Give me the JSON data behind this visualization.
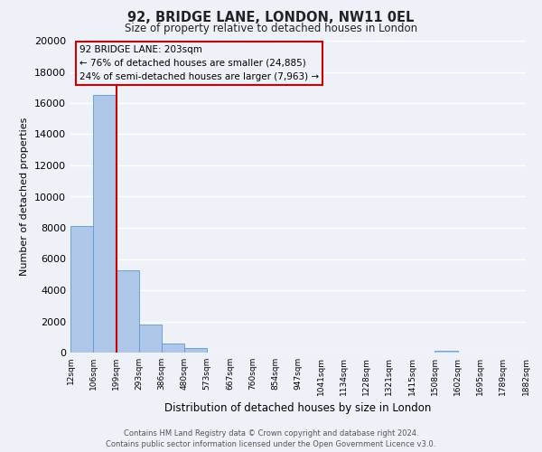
{
  "title": "92, BRIDGE LANE, LONDON, NW11 0EL",
  "subtitle": "Size of property relative to detached houses in London",
  "xlabel": "Distribution of detached houses by size in London",
  "ylabel": "Number of detached properties",
  "bin_labels": [
    "12sqm",
    "106sqm",
    "199sqm",
    "293sqm",
    "386sqm",
    "480sqm",
    "573sqm",
    "667sqm",
    "760sqm",
    "854sqm",
    "947sqm",
    "1041sqm",
    "1134sqm",
    "1228sqm",
    "1321sqm",
    "1415sqm",
    "1508sqm",
    "1602sqm",
    "1695sqm",
    "1789sqm",
    "1882sqm"
  ],
  "bin_edges": [
    12,
    106,
    199,
    293,
    386,
    480,
    573,
    667,
    760,
    854,
    947,
    1041,
    1134,
    1228,
    1321,
    1415,
    1508,
    1602,
    1695,
    1789,
    1882
  ],
  "bar_heights": [
    8100,
    16500,
    5300,
    1800,
    600,
    280,
    0,
    0,
    0,
    0,
    0,
    0,
    0,
    0,
    0,
    0,
    100,
    0,
    0,
    0
  ],
  "bar_color": "#aec6e8",
  "bar_edge_color": "#5b9bd5",
  "property_size": 203,
  "red_line_color": "#cc0000",
  "annotation_text_line1": "92 BRIDGE LANE: 203sqm",
  "annotation_text_line2": "← 76% of detached houses are smaller (24,885)",
  "annotation_text_line3": "24% of semi-detached houses are larger (7,963) →",
  "annotation_box_color": "#cc0000",
  "ylim": [
    0,
    20000
  ],
  "yticks": [
    0,
    2000,
    4000,
    6000,
    8000,
    10000,
    12000,
    14000,
    16000,
    18000,
    20000
  ],
  "footer_line1": "Contains HM Land Registry data © Crown copyright and database right 2024.",
  "footer_line2": "Contains public sector information licensed under the Open Government Licence v3.0.",
  "background_color": "#eef2f8",
  "grid_color": "#ffffff"
}
